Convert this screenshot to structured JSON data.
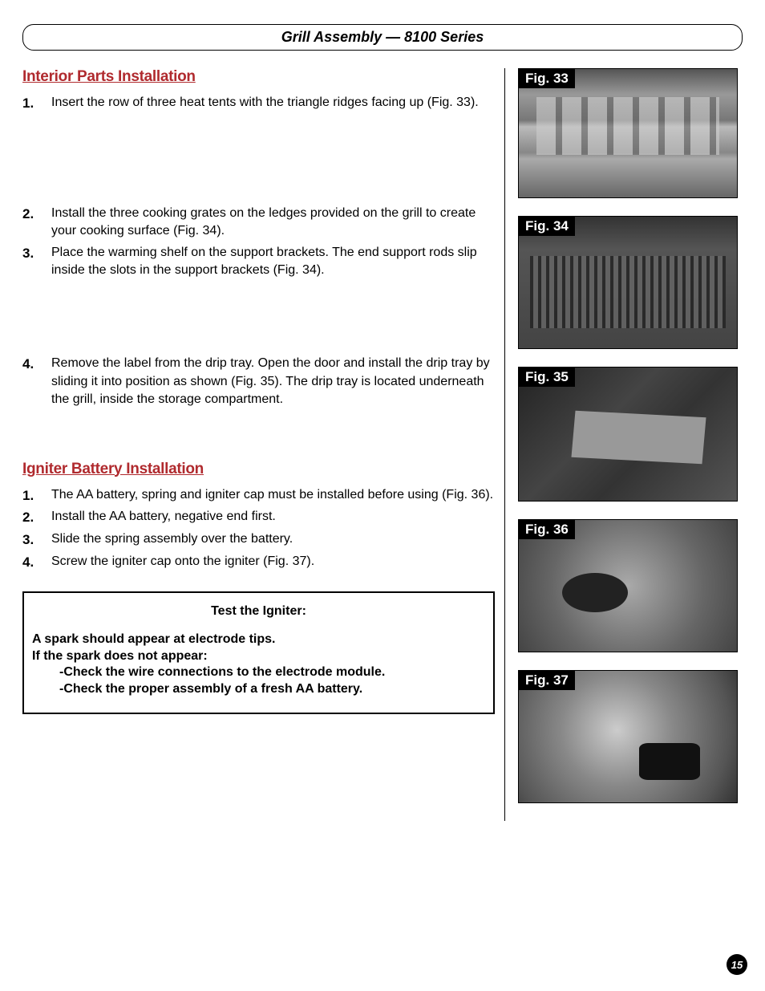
{
  "header": {
    "title": "Grill Assembly — 8100 Series"
  },
  "sections": {
    "interior": {
      "heading": "Interior Parts Installation",
      "steps": [
        {
          "num": "1.",
          "text": "Insert the row of three heat tents with the triangle ridges facing up (Fig. 33)."
        },
        {
          "num": "2.",
          "text": "Install the three cooking grates on the ledges provided on the grill to create your cooking surface (Fig. 34)."
        },
        {
          "num": "3.",
          "text": "Place the warming shelf on the support brackets. The end support rods slip inside the slots in the support brackets (Fig. 34)."
        },
        {
          "num": "4.",
          "text": "Remove the label from the drip tray.  Open the door and install the drip tray by sliding it into position as shown (Fig. 35). The drip tray is located underneath the grill, inside the storage compartment."
        }
      ]
    },
    "igniter": {
      "heading": "Igniter Battery Installation",
      "steps": [
        {
          "num": "1.",
          "text": "The AA battery, spring and igniter cap must be installed before using (Fig. 36)."
        },
        {
          "num": "2.",
          "text": "Install the AA battery, negative end first."
        },
        {
          "num": "3.",
          "text": "Slide the spring assembly over the battery."
        },
        {
          "num": "4.",
          "text": "Screw the igniter cap onto the igniter (Fig. 37)."
        }
      ]
    }
  },
  "infobox": {
    "title": "Test the Igniter:",
    "line1": "A spark should appear at electrode tips.",
    "line2": "If the spark does not appear:",
    "indent1": "-Check the wire connections to the electrode module.",
    "indent2": "-Check the proper assembly of a fresh AA battery."
  },
  "figures": {
    "f33": "Fig. 33",
    "f34": "Fig. 34",
    "f35": "Fig. 35",
    "f36": "Fig. 36",
    "f37": "Fig. 37"
  },
  "pageNumber": "15",
  "colors": {
    "heading": "#b02a2e",
    "text": "#000000",
    "background": "#ffffff"
  }
}
